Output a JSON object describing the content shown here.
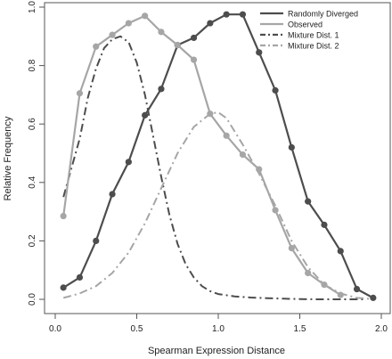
{
  "chart_data": {
    "type": "line",
    "title": "",
    "xlabel": "Spearman Expression Distance",
    "ylabel": "Relative Frequency",
    "xlim": [
      0.0,
      2.0
    ],
    "ylim": [
      0.0,
      1.0
    ],
    "x_ticks": [
      "0.0",
      "0.5",
      "1.0",
      "1.5",
      "2.0"
    ],
    "y_ticks": [
      "0.0",
      "0.2",
      "0.4",
      "0.6",
      "0.8",
      "1.0"
    ],
    "grid": false,
    "legend_position": "top-right",
    "series": [
      {
        "name": "Randomly Diverged",
        "style": "solid-markers",
        "color": "#4d4d4d",
        "x": [
          0.05,
          0.15,
          0.25,
          0.35,
          0.45,
          0.55,
          0.65,
          0.75,
          0.85,
          0.95,
          1.05,
          1.15,
          1.25,
          1.35,
          1.45,
          1.55,
          1.65,
          1.75,
          1.85,
          1.95
        ],
        "y": [
          0.04,
          0.075,
          0.2,
          0.36,
          0.47,
          0.63,
          0.72,
          0.87,
          0.895,
          0.945,
          0.975,
          0.975,
          0.845,
          0.715,
          0.52,
          0.335,
          0.255,
          0.165,
          0.035,
          0.005
        ]
      },
      {
        "name": "Observed",
        "style": "solid-markers",
        "color": "#a6a6a6",
        "x": [
          0.05,
          0.15,
          0.25,
          0.35,
          0.45,
          0.55,
          0.65,
          0.75,
          0.85,
          0.95,
          1.05,
          1.15,
          1.25,
          1.35,
          1.45,
          1.55,
          1.65,
          1.75
        ],
        "y": [
          0.285,
          0.705,
          0.865,
          0.905,
          0.945,
          0.97,
          0.915,
          0.87,
          0.82,
          0.635,
          0.56,
          0.495,
          0.445,
          0.305,
          0.175,
          0.09,
          0.05,
          0.015
        ]
      },
      {
        "name": "Mixture Dist. 1",
        "style": "dashdot",
        "color": "#4d4d4d",
        "x": [
          0.05,
          0.1,
          0.15,
          0.2,
          0.25,
          0.3,
          0.35,
          0.4,
          0.45,
          0.5,
          0.55,
          0.6,
          0.65,
          0.7,
          0.75,
          0.8,
          0.85,
          0.9,
          0.95,
          1.0,
          1.1,
          1.2,
          1.3,
          1.4,
          1.5,
          1.6,
          1.7,
          1.8,
          1.9
        ],
        "y": [
          0.35,
          0.45,
          0.55,
          0.69,
          0.79,
          0.86,
          0.89,
          0.9,
          0.88,
          0.81,
          0.7,
          0.56,
          0.42,
          0.29,
          0.19,
          0.12,
          0.075,
          0.045,
          0.028,
          0.018,
          0.01,
          0.006,
          0.004,
          0.002,
          0.001,
          0.0,
          0.0,
          0.0,
          0.0
        ]
      },
      {
        "name": "Mixture Dist. 2",
        "style": "dashdot",
        "color": "#a6a6a6",
        "x": [
          0.05,
          0.15,
          0.25,
          0.35,
          0.45,
          0.55,
          0.65,
          0.75,
          0.85,
          0.95,
          1.0,
          1.05,
          1.15,
          1.25,
          1.35,
          1.45,
          1.55,
          1.65,
          1.75,
          1.85,
          1.95
        ],
        "y": [
          0.005,
          0.02,
          0.045,
          0.09,
          0.16,
          0.26,
          0.38,
          0.5,
          0.59,
          0.635,
          0.64,
          0.62,
          0.53,
          0.43,
          0.32,
          0.2,
          0.11,
          0.05,
          0.02,
          0.005,
          0.001
        ]
      }
    ]
  }
}
